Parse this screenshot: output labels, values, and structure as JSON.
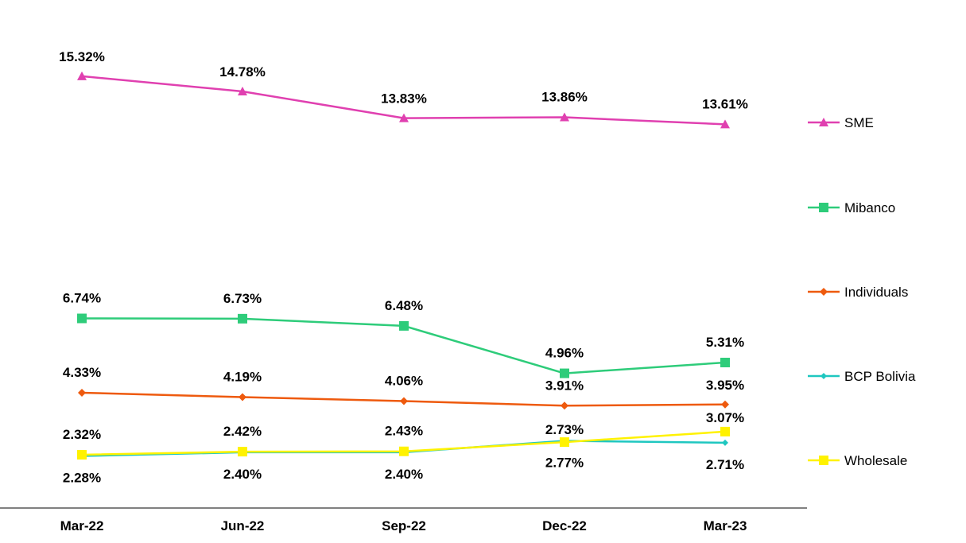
{
  "chart_data": {
    "type": "line",
    "title": "",
    "xlabel": "",
    "ylabel": "",
    "categories": [
      "Mar-22",
      "Jun-22",
      "Sep-22",
      "Dec-22",
      "Mar-23"
    ],
    "ylim": [
      0,
      16
    ],
    "grid": false,
    "legend_position": "right",
    "series": [
      {
        "name": "SME",
        "color": "#E040B0",
        "marker": "triangle",
        "values": [
          15.32,
          14.78,
          13.83,
          13.86,
          13.61
        ],
        "labels": [
          "15.32%",
          "14.78%",
          "13.83%",
          "13.86%",
          "13.61%"
        ]
      },
      {
        "name": "Mibanco",
        "color": "#2ECC7A",
        "marker": "square",
        "values": [
          6.74,
          6.73,
          6.48,
          4.96,
          5.31
        ],
        "labels": [
          "6.74%",
          "6.73%",
          "6.48%",
          "4.96%",
          "5.31%"
        ]
      },
      {
        "name": "Individuals",
        "color": "#EE5A0E",
        "marker": "diamond",
        "values": [
          4.33,
          4.19,
          4.06,
          3.91,
          3.95
        ],
        "labels": [
          "4.33%",
          "4.19%",
          "4.06%",
          "3.91%",
          "3.95%"
        ]
      },
      {
        "name": "BCP Bolivia",
        "color": "#1FC7C0",
        "marker": "diamond-small",
        "values": [
          2.28,
          2.4,
          2.4,
          2.77,
          2.71
        ],
        "labels": [
          "2.28%",
          "2.40%",
          "2.40%",
          "2.77%",
          "2.71%"
        ]
      },
      {
        "name": "Wholesale",
        "color": "#FFF200",
        "marker": "square",
        "values": [
          2.32,
          2.42,
          2.43,
          2.73,
          3.07
        ],
        "labels": [
          "2.32%",
          "2.42%",
          "2.43%",
          "2.73%",
          "3.07%"
        ]
      }
    ]
  }
}
